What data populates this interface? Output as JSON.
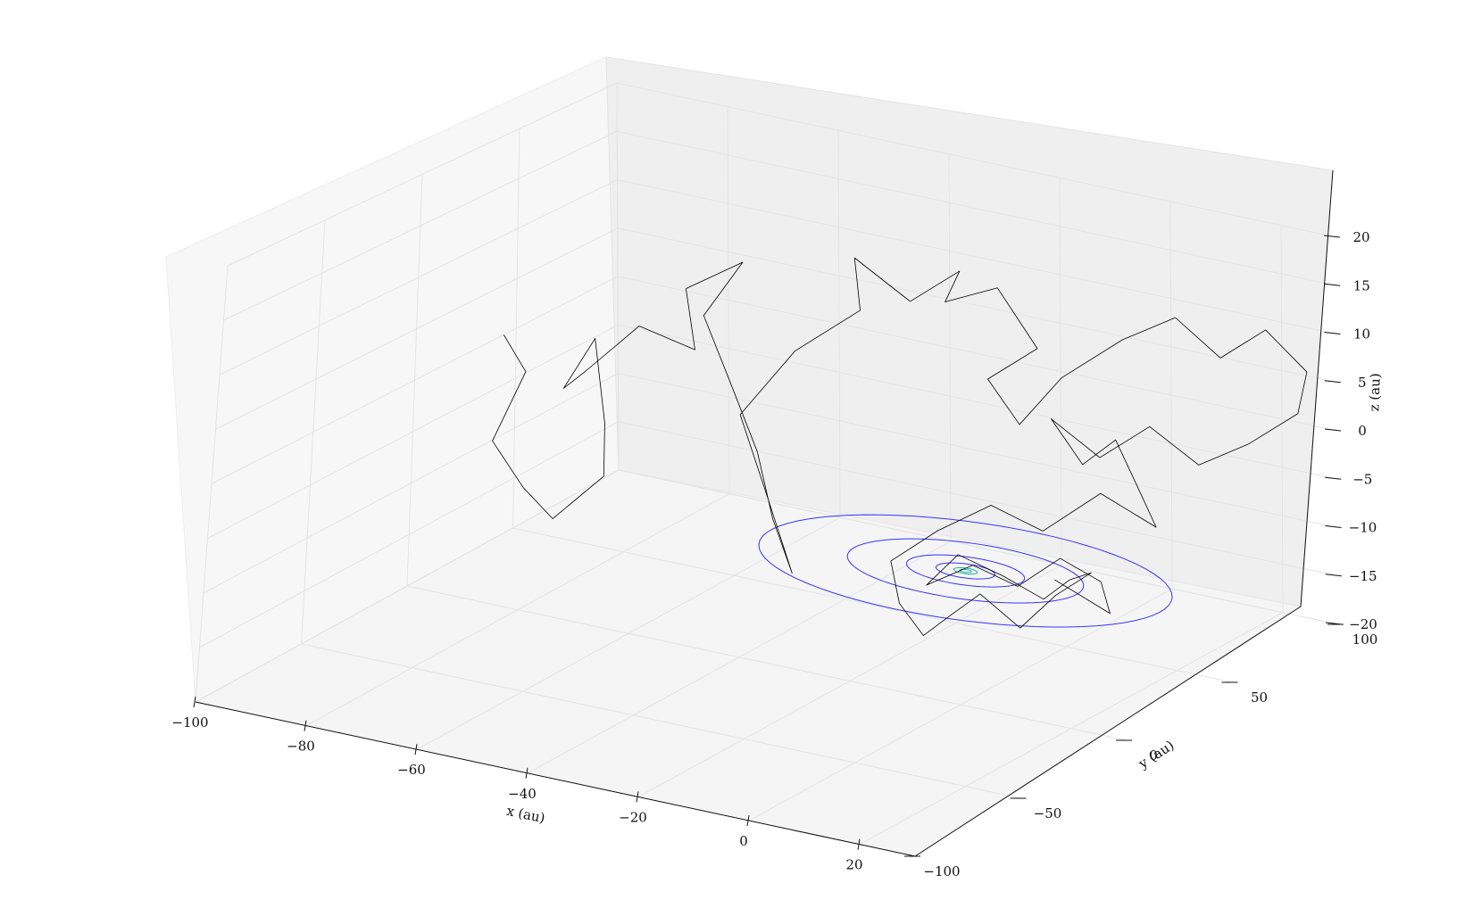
{
  "chart_data": {
    "type": "line3d",
    "title": "",
    "xlabel": "x (au)",
    "ylabel": "y (au)",
    "zlabel": "z (au)",
    "xlim": [
      -100,
      30
    ],
    "ylim": [
      -100,
      100
    ],
    "zlim": [
      -20,
      20
    ],
    "xticks": [
      "−100",
      "−80",
      "−60",
      "−40",
      "−20",
      "0",
      "20"
    ],
    "yticks": [
      "−100",
      "−50",
      "0",
      "50",
      "100"
    ],
    "zticks": [
      "−20",
      "−15",
      "−10",
      "−5",
      "0",
      "5",
      "10",
      "15",
      "20"
    ],
    "grid": true,
    "orbits": {
      "color": "#3333ff",
      "center": [
        0,
        0,
        -7
      ],
      "radii": [
        35,
        20,
        10,
        5,
        2,
        1
      ],
      "inner_color": "#20b2aa"
    },
    "series": [
      {
        "color": "#000000",
        "points": [
          [
            -95,
            30,
            2
          ],
          [
            -88,
            22,
            0
          ],
          [
            -90,
            12,
            -6
          ],
          [
            -82,
            6,
            -9
          ],
          [
            -78,
            10,
            -12
          ],
          [
            -72,
            18,
            -8
          ],
          [
            -75,
            26,
            -4
          ],
          [
            -80,
            34,
            3
          ],
          [
            -84,
            30,
            -2
          ],
          [
            -78,
            24,
            1
          ],
          [
            -70,
            28,
            6
          ],
          [
            -62,
            34,
            4
          ],
          [
            -66,
            40,
            9
          ],
          [
            -58,
            46,
            12
          ],
          [
            -62,
            38,
            7
          ],
          [
            -54,
            30,
            2
          ],
          [
            -46,
            22,
            -3
          ],
          [
            -40,
            14,
            -8
          ],
          [
            -34,
            8,
            -12
          ],
          [
            -42,
            16,
            -6
          ],
          [
            -50,
            24,
            0
          ],
          [
            -44,
            34,
            6
          ],
          [
            -36,
            44,
            10
          ],
          [
            -40,
            52,
            14
          ],
          [
            -32,
            58,
            10
          ],
          [
            -26,
            66,
            13
          ],
          [
            -30,
            70,
            9
          ],
          [
            -22,
            74,
            11
          ],
          [
            -14,
            72,
            6
          ],
          [
            -20,
            64,
            3
          ],
          [
            -12,
            58,
            0
          ],
          [
            -6,
            62,
            5
          ],
          [
            2,
            70,
            9
          ],
          [
            8,
            80,
            11
          ],
          [
            14,
            86,
            7
          ],
          [
            20,
            92,
            10
          ],
          [
            26,
            96,
            6
          ],
          [
            28,
            86,
            3
          ],
          [
            22,
            78,
            0
          ],
          [
            16,
            70,
            -2
          ],
          [
            10,
            62,
            2
          ],
          [
            4,
            54,
            -1
          ],
          [
            -2,
            46,
            3
          ],
          [
            6,
            40,
            0
          ],
          [
            14,
            34,
            4
          ],
          [
            20,
            28,
            1
          ],
          [
            26,
            22,
            -2
          ],
          [
            18,
            16,
            1
          ],
          [
            10,
            10,
            -3
          ],
          [
            2,
            6,
            -1
          ],
          [
            -6,
            2,
            -4
          ],
          [
            -12,
            -4,
            -7
          ],
          [
            -8,
            -10,
            -10
          ],
          [
            -2,
            -14,
            -12
          ],
          [
            4,
            -18,
            -9
          ],
          [
            10,
            -20,
            -6
          ],
          [
            16,
            -16,
            -9
          ],
          [
            20,
            -10,
            -6
          ],
          [
            24,
            -4,
            -4
          ],
          [
            18,
            2,
            -6
          ],
          [
            12,
            6,
            -9
          ],
          [
            6,
            2,
            -7
          ],
          [
            0,
            -4,
            -5
          ],
          [
            -4,
            -8,
            -8
          ],
          [
            2,
            -2,
            -6
          ],
          [
            8,
            4,
            -8
          ],
          [
            14,
            8,
            -5
          ],
          [
            20,
            12,
            -7
          ],
          [
            24,
            6,
            -9
          ],
          [
            16,
            0,
            -6
          ]
        ]
      }
    ]
  }
}
